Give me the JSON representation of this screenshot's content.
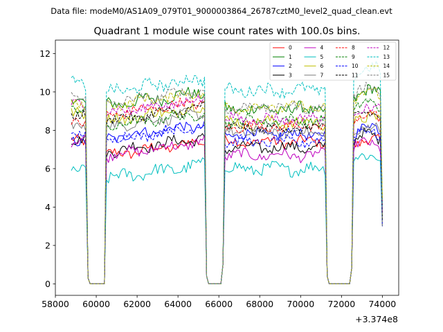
{
  "suptitle": "Data file: modeM0/AS1A09_079T01_9000003864_26787cztM0_level2_quad_clean.evt",
  "chart_data": {
    "type": "line",
    "title": "Quadrant 1 module wise count rates with 100.0s bins.",
    "xlabel": "",
    "ylabel": "",
    "x_offset_label": "+3.374e8",
    "xlim": [
      58000,
      74800
    ],
    "ylim": [
      -0.6,
      12.7
    ],
    "x_ticks": [
      58000,
      60000,
      62000,
      64000,
      66000,
      68000,
      70000,
      72000,
      74000
    ],
    "x_tick_labels": [
      "58000",
      "60000",
      "62000",
      "64000",
      "66000",
      "68000",
      "70000",
      "72000",
      "74000"
    ],
    "y_ticks": [
      0,
      2,
      4,
      6,
      8,
      10,
      12
    ],
    "y_tick_labels": [
      "0",
      "2",
      "4",
      "6",
      "8",
      "10",
      "12"
    ],
    "grid": false,
    "legend_position": "top-right",
    "legend_columns": 4,
    "segments": [
      {
        "start": 58780,
        "end": 59500
      },
      {
        "start": 60500,
        "end": 65300
      },
      {
        "start": 66300,
        "end": 71200
      },
      {
        "start": 72600,
        "end": 74000
      }
    ],
    "gap_points": [
      {
        "x": 59600,
        "value": 0.3
      },
      {
        "x": 59700,
        "value": 0.0
      },
      {
        "x": 60400,
        "value": 0.0
      },
      {
        "x": 65400,
        "value": 0.4
      },
      {
        "x": 65500,
        "value": 0.0
      },
      {
        "x": 66100,
        "value": 0.0
      },
      {
        "x": 66200,
        "value": 1.0
      },
      {
        "x": 71300,
        "value": 0.4
      },
      {
        "x": 71400,
        "value": 0.0
      },
      {
        "x": 72400,
        "value": 0.0
      },
      {
        "x": 72500,
        "value": 0.8
      }
    ],
    "series": [
      {
        "name": "0",
        "color": "#ff0000",
        "dash": "solid",
        "level": [
          7.4,
          6.7,
          7.4,
          7.2
        ],
        "amp": 0.25
      },
      {
        "name": "1",
        "color": "#008000",
        "dash": "solid",
        "level": [
          9.6,
          9.3,
          9.1,
          9.7
        ],
        "amp": 0.3
      },
      {
        "name": "2",
        "color": "#0000ff",
        "dash": "solid",
        "level": [
          7.5,
          7.6,
          7.8,
          7.8
        ],
        "amp": 0.25
      },
      {
        "name": "3",
        "color": "#000000",
        "dash": "solid",
        "level": [
          7.6,
          6.9,
          7.1,
          7.4
        ],
        "amp": 0.25
      },
      {
        "name": "4",
        "color": "#bf00bf",
        "dash": "solid",
        "level": [
          7.5,
          6.7,
          6.7,
          7.0
        ],
        "amp": 0.25
      },
      {
        "name": "5",
        "color": "#00bfbf",
        "dash": "solid",
        "level": [
          5.8,
          5.5,
          6.0,
          6.4
        ],
        "amp": 0.3
      },
      {
        "name": "6",
        "color": "#bfbf00",
        "dash": "solid",
        "level": [
          8.8,
          8.5,
          8.4,
          8.4
        ],
        "amp": 0.3
      },
      {
        "name": "7",
        "color": "#808080",
        "dash": "solid",
        "level": [
          8.2,
          8.2,
          7.9,
          7.8
        ],
        "amp": 0.25
      },
      {
        "name": "8",
        "color": "#ff0000",
        "dash": "dashed",
        "level": [
          8.5,
          8.8,
          8.2,
          8.4
        ],
        "amp": 0.25
      },
      {
        "name": "9",
        "color": "#008000",
        "dash": "dashed",
        "level": [
          9.2,
          8.2,
          8.5,
          9.0
        ],
        "amp": 0.25
      },
      {
        "name": "10",
        "color": "#0000ff",
        "dash": "dashed",
        "level": [
          7.8,
          7.5,
          7.4,
          7.6
        ],
        "amp": 0.25
      },
      {
        "name": "11",
        "color": "#000000",
        "dash": "dashed",
        "level": [
          8.7,
          8.5,
          8.1,
          8.6
        ],
        "amp": 0.25
      },
      {
        "name": "12",
        "color": "#bf00bf",
        "dash": "dashed",
        "level": [
          9.3,
          8.9,
          8.6,
          8.9
        ],
        "amp": 0.25
      },
      {
        "name": "13",
        "color": "#00bfbf",
        "dash": "dashed",
        "level": [
          10.4,
          10.0,
          10.1,
          10.9
        ],
        "amp": 0.3
      },
      {
        "name": "14",
        "color": "#bfbf00",
        "dash": "dashed",
        "level": [
          9.4,
          9.3,
          9.2,
          9.6
        ],
        "amp": 0.25
      },
      {
        "name": "15",
        "color": "#808080",
        "dash": "dashed",
        "level": [
          9.9,
          9.4,
          9.2,
          9.8
        ],
        "amp": 0.25
      }
    ]
  }
}
